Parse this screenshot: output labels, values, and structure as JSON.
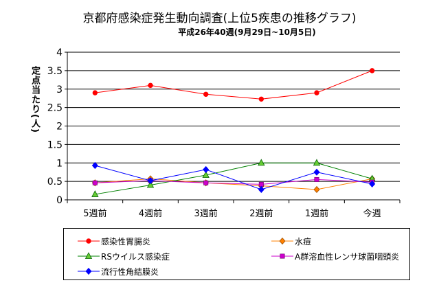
{
  "chart_data": {
    "type": "line",
    "title": "京都府感染症発生動向調査(上位5疾患の推移グラフ)",
    "subtitle": "平成26年40週(9月29日~10月5日)",
    "ylabel": "定点当たり(人)",
    "xlabel": "",
    "categories": [
      "5週前",
      "4週前",
      "3週前",
      "2週前",
      "1週前",
      "今週"
    ],
    "ylim": [
      0,
      4
    ],
    "yticks": [
      "0",
      "0.5",
      "1",
      "1.5",
      "2",
      "2.5",
      "3",
      "3.5",
      "4"
    ],
    "grid": true,
    "legend_position": "bottom",
    "series": [
      {
        "name": "感染性胃腸炎",
        "values": [
          2.9,
          3.1,
          2.86,
          2.73,
          2.9,
          3.5
        ],
        "color": "#ff0000",
        "marker": "circle"
      },
      {
        "name": "水痘",
        "values": [
          0.46,
          0.57,
          0.46,
          0.38,
          0.28,
          0.57
        ],
        "color": "#ff8000",
        "marker": "diamond"
      },
      {
        "name": "RSウイルス感染症",
        "values": [
          0.15,
          0.4,
          0.67,
          1.0,
          1.0,
          0.57
        ],
        "color": "#008000",
        "marker": "triangle"
      },
      {
        "name": "A群溶血性レンサ球菌咽頭炎",
        "values": [
          0.46,
          0.52,
          0.46,
          0.42,
          0.55,
          0.48
        ],
        "color": "#cc00cc",
        "marker": "square"
      },
      {
        "name": "流行性角結膜炎",
        "values": [
          0.93,
          0.52,
          0.82,
          0.28,
          0.75,
          0.43
        ],
        "color": "#0000ff",
        "marker": "diamond"
      }
    ]
  }
}
